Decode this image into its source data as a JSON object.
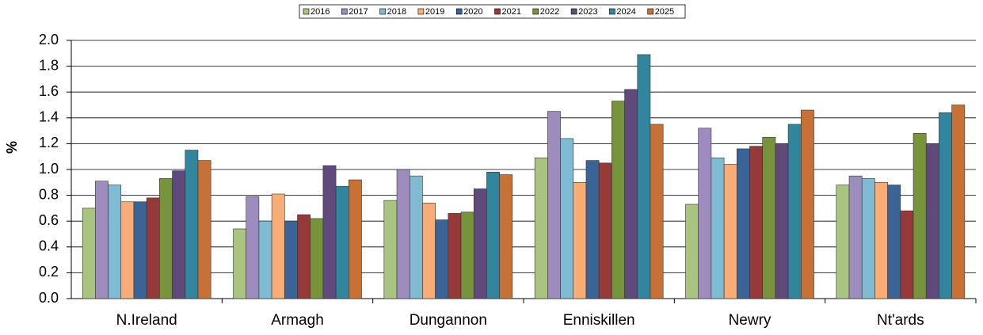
{
  "chart_data": {
    "type": "bar",
    "y_label": "%",
    "categories": [
      "N.Ireland",
      "Armagh",
      "Dungannon",
      "Enniskillen",
      "Newry",
      "Nt'ards"
    ],
    "series": [
      {
        "name": "2016",
        "color": "#a9c47f",
        "values": [
          0.7,
          0.54,
          0.76,
          1.09,
          0.73,
          0.88
        ]
      },
      {
        "name": "2017",
        "color": "#9e8cbf",
        "values": [
          0.91,
          0.79,
          1.0,
          1.45,
          1.32,
          0.95
        ]
      },
      {
        "name": "2018",
        "color": "#7fbcd4",
        "values": [
          0.88,
          0.6,
          0.95,
          1.24,
          1.09,
          0.93
        ]
      },
      {
        "name": "2019",
        "color": "#f9ac75",
        "values": [
          0.75,
          0.81,
          0.74,
          0.9,
          1.04,
          0.9
        ]
      },
      {
        "name": "2020",
        "color": "#3b6496",
        "values": [
          0.75,
          0.6,
          0.61,
          1.07,
          1.16,
          0.88
        ]
      },
      {
        "name": "2021",
        "color": "#953a39",
        "values": [
          0.78,
          0.65,
          0.66,
          1.05,
          1.18,
          0.68
        ]
      },
      {
        "name": "2022",
        "color": "#77933c",
        "values": [
          0.93,
          0.62,
          0.67,
          1.53,
          1.25,
          1.28
        ]
      },
      {
        "name": "2023",
        "color": "#604a7b",
        "values": [
          0.99,
          1.03,
          0.85,
          1.62,
          1.2,
          1.2
        ]
      },
      {
        "name": "2024",
        "color": "#31859c",
        "values": [
          1.15,
          0.87,
          0.98,
          1.89,
          1.35,
          1.44
        ]
      },
      {
        "name": "2025",
        "color": "#c87137",
        "values": [
          1.07,
          0.92,
          0.96,
          1.35,
          1.46,
          1.5
        ]
      }
    ],
    "ylim": [
      0,
      2
    ],
    "yticks": [
      {
        "value": 0,
        "label": "0.0"
      },
      {
        "value": 0.2,
        "label": "0.2"
      },
      {
        "value": 0.4,
        "label": "0.4"
      },
      {
        "value": 0.6,
        "label": "0.6"
      },
      {
        "value": 0.8,
        "label": "0.8"
      },
      {
        "value": 1,
        "label": "1.0"
      },
      {
        "value": 1.2,
        "label": "1.2"
      },
      {
        "value": 1.4,
        "label": "1.4"
      },
      {
        "value": 1.6,
        "label": "1.6"
      },
      {
        "value": 1.8,
        "label": "1.8"
      },
      {
        "value": 2,
        "label": "2.0"
      }
    ],
    "grid": true,
    "legend": "top"
  }
}
